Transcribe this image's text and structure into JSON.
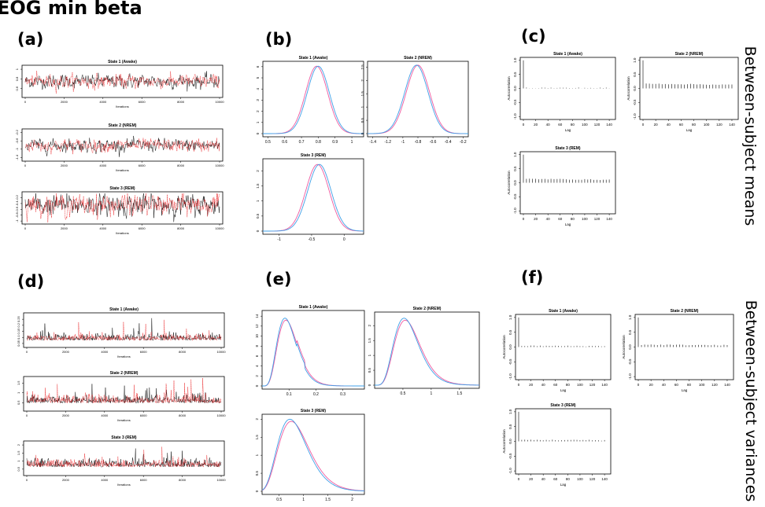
{
  "figure": {
    "title": "EOG min beta",
    "rows": [
      "Between-subject means",
      "Between-subject variances"
    ],
    "panel_letters": [
      "(a)",
      "(b)",
      "(c)",
      "(d)",
      "(e)",
      "(f)"
    ],
    "colors": {
      "chain1": "#000000",
      "chain2": "#e8181c",
      "density1": "#ee5aa0",
      "density2": "#3fa0e8",
      "acf": "#000000"
    }
  },
  "chart_data": [
    {
      "id": "a",
      "type": "line",
      "kind": "trace",
      "subplots": [
        {
          "title": "State 1 (Awake)",
          "xlabel": "Iterations",
          "xticks": [
            0,
            2000,
            4000,
            6000,
            8000,
            10000
          ],
          "yticks": [
            0.6,
            0.8,
            1.0
          ],
          "ylim": [
            0.45,
            1.05
          ],
          "mean": 0.75,
          "sd": 0.07,
          "series": [
            "chain 1",
            "chain 2"
          ]
        },
        {
          "title": "State 2 (NREM)",
          "xlabel": "Iterations",
          "xticks": [
            0,
            2000,
            4000,
            6000,
            8000,
            10000
          ],
          "yticks": [
            -1.4,
            -1.0,
            -0.6,
            -0.2
          ],
          "ylim": [
            -1.5,
            -0.1
          ],
          "mean": -0.82,
          "sd": 0.15,
          "series": [
            "chain 1",
            "chain 2"
          ]
        },
        {
          "title": "State 3 (REM)",
          "xlabel": "Iterations",
          "xticks": [
            0,
            2000,
            4000,
            6000,
            8000,
            10000
          ],
          "yticks": [
            -1.0,
            -0.8,
            -0.6,
            -0.4,
            -0.2
          ],
          "ylim": [
            -1.05,
            -0.05
          ],
          "mean": -0.45,
          "sd": 0.18,
          "series": [
            "chain 1",
            "chain 2"
          ]
        }
      ]
    },
    {
      "id": "b",
      "type": "line",
      "kind": "density",
      "subplots": [
        {
          "title": "State 1 (Awake)",
          "xticks": [
            0.5,
            0.6,
            0.7,
            0.8,
            0.9,
            1.0
          ],
          "yticks": [
            0,
            1,
            2,
            3,
            4,
            5,
            6
          ],
          "xlim": [
            0.47,
            1.07
          ],
          "ylim": [
            0,
            6.2
          ],
          "means": [
            0.79,
            0.8
          ],
          "sd": 0.066
        },
        {
          "title": "State 2 (NREM)",
          "xticks": [
            -1.4,
            -1.2,
            -1.0,
            -0.8,
            -0.6,
            -0.4,
            -0.2
          ],
          "yticks": [
            0.0,
            0.5,
            1.0,
            1.5,
            2.0,
            2.5
          ],
          "xlim": [
            -1.47,
            -0.13
          ],
          "ylim": [
            0,
            2.6
          ],
          "means": [
            -0.8,
            -0.82
          ],
          "sd": 0.155
        },
        {
          "title": "State 3 (REM)",
          "xticks": [
            -1.0,
            -0.5,
            0.0
          ],
          "yticks": [
            0.0,
            0.5,
            1.0,
            1.5,
            2.0
          ],
          "xlim": [
            -1.25,
            0.3
          ],
          "ylim": [
            0,
            2.3
          ],
          "means": [
            -0.41,
            -0.38
          ],
          "sd": 0.18
        }
      ]
    },
    {
      "id": "c",
      "type": "bar",
      "kind": "autocorrelation",
      "subplots": [
        {
          "title": "State 1 (Awake)",
          "xlabel": "Lag",
          "ylabel": "Autocorrelation",
          "xticks": [
            0,
            20,
            40,
            60,
            80,
            100,
            120,
            140
          ],
          "yticks": [
            -1.0,
            -0.5,
            0.0,
            0.5,
            1.0
          ],
          "ylim": [
            -1.05,
            1.05
          ],
          "acf_level": 0.02
        },
        {
          "title": "State 2 (NREM)",
          "xlabel": "Lag",
          "ylabel": "Autocorrelation",
          "xticks": [
            0,
            20,
            40,
            60,
            80,
            100,
            120,
            140
          ],
          "yticks": [
            -1.0,
            -0.5,
            0.0,
            0.5,
            1.0
          ],
          "ylim": [
            -1.05,
            1.05
          ],
          "acf_level": 0.17
        },
        {
          "title": "State 3 (REM)",
          "xlabel": "Lag",
          "ylabel": "Autocorrelation",
          "xticks": [
            0,
            20,
            40,
            60,
            80,
            100,
            120,
            140
          ],
          "yticks": [
            -1.0,
            -0.5,
            0.0,
            0.5,
            1.0
          ],
          "ylim": [
            -1.05,
            1.05
          ],
          "acf_level": 0.14
        }
      ]
    },
    {
      "id": "d",
      "type": "line",
      "kind": "trace",
      "subplots": [
        {
          "title": "State 1 (Awake)",
          "xlabel": "Iterations",
          "xticks": [
            0,
            2000,
            4000,
            6000,
            8000,
            10000
          ],
          "yticks": [
            0.05,
            0.1,
            0.15,
            0.2,
            0.25
          ],
          "ylim": [
            0.03,
            0.29
          ],
          "mean": 0.085,
          "sd": 0.025,
          "series": [
            "chain 1",
            "chain 2"
          ]
        },
        {
          "title": "State 2 (NREM)",
          "xlabel": "Iterations",
          "xticks": [
            0,
            2000,
            4000,
            6000,
            8000,
            10000
          ],
          "yticks": [
            0.5,
            1.0,
            1.5
          ],
          "ylim": [
            0.15,
            1.75
          ],
          "mean": 0.55,
          "sd": 0.18,
          "series": [
            "chain 1",
            "chain 2"
          ]
        },
        {
          "title": "State 3 (REM)",
          "xlabel": "Iterations",
          "xticks": [
            0,
            2000,
            4000,
            6000,
            8000,
            10000
          ],
          "yticks": [
            0.5,
            1.0,
            1.5,
            2.0
          ],
          "ylim": [
            0.2,
            2.15
          ],
          "mean": 0.72,
          "sd": 0.22,
          "series": [
            "chain 1",
            "chain 2"
          ]
        }
      ]
    },
    {
      "id": "e",
      "type": "line",
      "kind": "density",
      "subplots": [
        {
          "title": "State 1 (Awake)",
          "xticks": [
            0.1,
            0.2,
            0.3
          ],
          "yticks": [
            0,
            2,
            4,
            6,
            8,
            10,
            12,
            14
          ],
          "xlim": [
            0.0,
            0.38
          ],
          "ylim": [
            0,
            14.5
          ],
          "mode": 0.085,
          "peak": 13.6
        },
        {
          "title": "State 2 (NREM)",
          "xticks": [
            0.5,
            1.0,
            1.5
          ],
          "yticks": [
            0.0,
            0.5,
            1.0,
            1.5,
            2.0
          ],
          "xlim": [
            0.0,
            1.85
          ],
          "ylim": [
            0,
            2.35
          ],
          "mode": 0.52,
          "peak": 2.25
        },
        {
          "title": "State 3 (REM)",
          "xticks": [
            0.5,
            1.0,
            1.5,
            2.0
          ],
          "yticks": [
            0.0,
            0.5,
            1.0,
            1.5,
            2.0
          ],
          "xlim": [
            0.15,
            2.25
          ],
          "ylim": [
            0,
            2.05
          ],
          "mode": 0.72,
          "peak": 2.0
        }
      ]
    },
    {
      "id": "f",
      "type": "bar",
      "kind": "autocorrelation",
      "subplots": [
        {
          "title": "State 1 (Awake)",
          "xlabel": "Lag",
          "ylabel": "Autocorrelation",
          "xticks": [
            0,
            20,
            40,
            60,
            80,
            100,
            120,
            140
          ],
          "yticks": [
            -1.0,
            -0.5,
            0.0,
            0.5,
            1.0
          ],
          "ylim": [
            -1.05,
            1.05
          ],
          "acf_level": 0.04
        },
        {
          "title": "State 2 (NREM)",
          "xlabel": "Lag",
          "ylabel": "Autocorrelation",
          "xticks": [
            0,
            20,
            40,
            60,
            80,
            100,
            120,
            140
          ],
          "yticks": [
            -1.0,
            -0.5,
            0.0,
            0.5,
            1.0
          ],
          "ylim": [
            -1.05,
            1.05
          ],
          "acf_level": 0.08
        },
        {
          "title": "State 3 (REM)",
          "xlabel": "Lag",
          "ylabel": "Autocorrelation",
          "xticks": [
            0,
            20,
            40,
            60,
            80,
            100,
            120,
            140
          ],
          "yticks": [
            -1.0,
            -0.5,
            0.0,
            0.5,
            1.0
          ],
          "ylim": [
            -1.05,
            1.05
          ],
          "acf_level": 0.05
        }
      ]
    }
  ]
}
